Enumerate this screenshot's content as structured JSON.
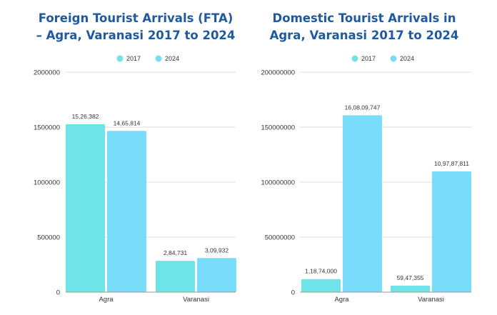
{
  "chart_data": [
    {
      "type": "bar",
      "title_lines": [
        "Foreign Tourist Arrivals (FTA)",
        "– Agra, Varanasi 2017 to 2024"
      ],
      "categories": [
        "Agra",
        "Varanasi"
      ],
      "series": [
        {
          "name": "2017",
          "values": [
            1526382,
            284731
          ],
          "labels": [
            "15,26,382",
            "2,84,731"
          ]
        },
        {
          "name": "2024",
          "values": [
            1465814,
            309932
          ],
          "labels": [
            "14,65,814",
            "3,09,932"
          ]
        }
      ],
      "ylim": [
        0,
        2000000
      ],
      "yticks": [
        0,
        500000,
        1000000,
        1500000,
        2000000
      ],
      "ytick_labels": [
        "0",
        "500000",
        "1000000",
        "1500000",
        "2000000"
      ],
      "legend_position": "top-center",
      "grid": true
    },
    {
      "type": "bar",
      "title_lines": [
        "Domestic Tourist Arrivals in",
        "Agra, Varanasi 2017 to 2024"
      ],
      "categories": [
        "Agra",
        "Varanasi"
      ],
      "series": [
        {
          "name": "2017",
          "values": [
            11874000,
            5947355
          ],
          "labels": [
            "1,18,74,000",
            "59,47,355"
          ]
        },
        {
          "name": "2024",
          "values": [
            160809747,
            109787811
          ],
          "labels": [
            "16,08,09,747",
            "10,97,87,811"
          ]
        }
      ],
      "ylim": [
        0,
        200000000
      ],
      "yticks": [
        0,
        50000000,
        100000000,
        150000000,
        200000000
      ],
      "ytick_labels": [
        "0",
        "50000000",
        "100000000",
        "150000000",
        "200000000"
      ],
      "legend_position": "top-center",
      "grid": true
    }
  ],
  "colors": {
    "series_2017": "#6ee4e8",
    "series_2024": "#79dcfa",
    "title": "#1e5aa0",
    "text": "#333333",
    "grid": "#dcdcdc",
    "axis": "#9a9a9a"
  }
}
